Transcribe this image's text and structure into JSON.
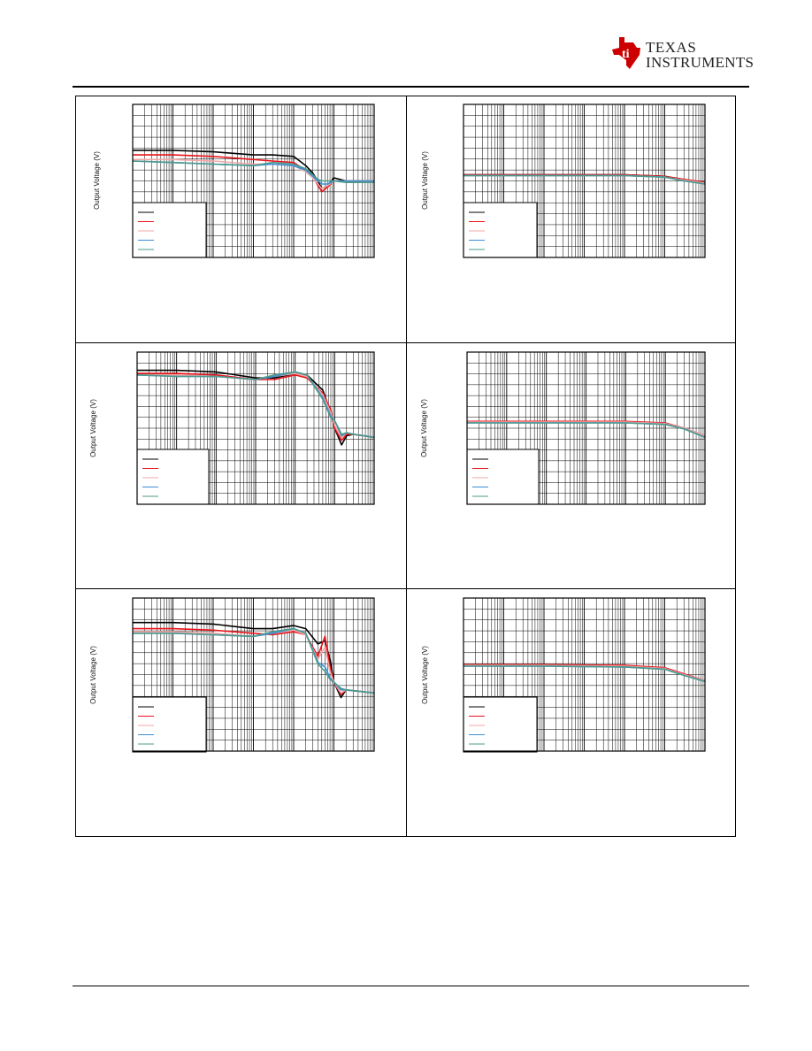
{
  "header": {
    "logo_line1": "TEXAS",
    "logo_line2": "INSTRUMENTS",
    "logo_colors": {
      "mark": "#cc0000",
      "text": "#222222"
    }
  },
  "series_colors": [
    "#000000",
    "#e8141b",
    "#f2a7a7",
    "#3d8fd6",
    "#4c9a8c"
  ],
  "chart_data": [
    {
      "type": "line",
      "ylabel": "Output Voltage (V)",
      "xscale": "log",
      "xlim": [
        10,
        10000000
      ],
      "ylim": [
        0,
        1
      ],
      "legend_placement": "bottom-left",
      "series": [
        {
          "x": [
            10,
            100,
            1000,
            10000,
            30000,
            100000,
            200000,
            300000,
            400000,
            500000,
            700000,
            1000000,
            2000000,
            10000000
          ],
          "y": [
            0.7,
            0.7,
            0.69,
            0.67,
            0.67,
            0.66,
            0.6,
            0.55,
            0.5,
            0.45,
            0.47,
            0.52,
            0.5,
            0.5
          ]
        },
        {
          "x": [
            10,
            100,
            1000,
            10000,
            30000,
            100000,
            200000,
            300000,
            400000,
            500000,
            700000,
            1000000,
            2000000,
            10000000
          ],
          "y": [
            0.67,
            0.67,
            0.66,
            0.64,
            0.63,
            0.62,
            0.57,
            0.53,
            0.47,
            0.43,
            0.46,
            0.5,
            0.5,
            0.5
          ]
        },
        {
          "x": [
            10,
            100,
            1000,
            10000,
            30000,
            100000,
            200000,
            300000,
            400000,
            500000,
            700000,
            1000000,
            2000000,
            10000000
          ],
          "y": [
            0.64,
            0.64,
            0.63,
            0.61,
            0.61,
            0.6,
            0.56,
            0.52,
            0.48,
            0.45,
            0.47,
            0.5,
            0.5,
            0.5
          ]
        },
        {
          "x": [
            10,
            100,
            1000,
            10000,
            30000,
            100000,
            200000,
            300000,
            400000,
            500000,
            700000,
            1000000,
            2000000,
            10000000
          ],
          "y": [
            0.63,
            0.62,
            0.61,
            0.6,
            0.61,
            0.6,
            0.57,
            0.53,
            0.5,
            0.48,
            0.48,
            0.5,
            0.5,
            0.5
          ]
        },
        {
          "x": [
            10,
            100,
            1000,
            10000,
            30000,
            100000,
            200000,
            300000,
            400000,
            500000,
            700000,
            1000000,
            2000000,
            10000000
          ],
          "y": [
            0.63,
            0.62,
            0.61,
            0.6,
            0.62,
            0.61,
            0.58,
            0.54,
            0.51,
            0.5,
            0.5,
            0.5,
            0.49,
            0.49
          ]
        }
      ]
    },
    {
      "type": "line",
      "ylabel": "Output Voltage (V)",
      "xscale": "log",
      "xlim": [
        10,
        10000000
      ],
      "ylim": [
        0,
        1
      ],
      "legend_placement": "bottom-left",
      "series": [
        {
          "x": [
            10,
            1000,
            100000,
            1000000,
            3000000,
            10000000
          ],
          "y": [
            0.54,
            0.54,
            0.54,
            0.53,
            0.51,
            0.49
          ]
        },
        {
          "x": [
            10,
            1000,
            100000,
            1000000,
            3000000,
            10000000
          ],
          "y": [
            0.54,
            0.54,
            0.54,
            0.53,
            0.51,
            0.49
          ]
        },
        {
          "x": [
            10,
            1000,
            100000,
            1000000,
            3000000,
            10000000
          ],
          "y": [
            0.535,
            0.535,
            0.535,
            0.525,
            0.505,
            0.485
          ]
        },
        {
          "x": [
            10,
            1000,
            100000,
            1000000,
            3000000,
            10000000
          ],
          "y": [
            0.535,
            0.535,
            0.535,
            0.525,
            0.5,
            0.48
          ]
        },
        {
          "x": [
            10,
            1000,
            100000,
            1000000,
            3000000,
            10000000
          ],
          "y": [
            0.535,
            0.535,
            0.535,
            0.525,
            0.5,
            0.48
          ]
        }
      ]
    },
    {
      "type": "line",
      "ylabel": "Output Voltage (V)",
      "xscale": "log",
      "xlim": [
        10,
        10000000
      ],
      "ylim": [
        0,
        1
      ],
      "legend_placement": "bottom-left",
      "series": [
        {
          "x": [
            10,
            100,
            1000,
            10000,
            30000,
            100000,
            200000,
            500000,
            800000,
            1000000,
            1500000,
            2000000,
            3000000,
            10000000
          ],
          "y": [
            0.88,
            0.88,
            0.87,
            0.83,
            0.83,
            0.86,
            0.85,
            0.75,
            0.6,
            0.5,
            0.39,
            0.45,
            0.46,
            0.44
          ]
        },
        {
          "x": [
            10,
            100,
            1000,
            10000,
            30000,
            100000,
            200000,
            500000,
            800000,
            1000000,
            1500000,
            2000000,
            3000000,
            10000000
          ],
          "y": [
            0.86,
            0.86,
            0.85,
            0.82,
            0.82,
            0.85,
            0.83,
            0.73,
            0.62,
            0.5,
            0.42,
            0.46,
            0.46,
            0.44
          ]
        },
        {
          "x": [
            10,
            100,
            1000,
            10000,
            30000,
            100000,
            200000,
            500000,
            800000,
            1000000,
            1500000,
            2000000,
            3000000,
            10000000
          ],
          "y": [
            0.85,
            0.85,
            0.84,
            0.82,
            0.84,
            0.86,
            0.84,
            0.72,
            0.6,
            0.52,
            0.44,
            0.47,
            0.46,
            0.44
          ]
        },
        {
          "x": [
            10,
            100,
            1000,
            10000,
            30000,
            100000,
            200000,
            500000,
            800000,
            1000000,
            1500000,
            2000000,
            3000000,
            10000000
          ],
          "y": [
            0.85,
            0.84,
            0.84,
            0.82,
            0.84,
            0.87,
            0.85,
            0.7,
            0.58,
            0.55,
            0.45,
            0.47,
            0.46,
            0.44
          ]
        },
        {
          "x": [
            10,
            100,
            1000,
            10000,
            30000,
            100000,
            200000,
            500000,
            800000,
            1000000,
            1500000,
            2000000,
            3000000,
            10000000
          ],
          "y": [
            0.85,
            0.84,
            0.84,
            0.82,
            0.85,
            0.87,
            0.85,
            0.69,
            0.57,
            0.55,
            0.46,
            0.47,
            0.46,
            0.44
          ]
        }
      ]
    },
    {
      "type": "line",
      "ylabel": "Output Voltage (V)",
      "xscale": "log",
      "xlim": [
        10,
        10000000
      ],
      "ylim": [
        0,
        1
      ],
      "legend_placement": "bottom-left",
      "series": [
        {
          "x": [
            10,
            1000,
            100000,
            1000000,
            3000000,
            10000000
          ],
          "y": [
            0.54,
            0.54,
            0.54,
            0.53,
            0.5,
            0.45
          ]
        },
        {
          "x": [
            10,
            1000,
            100000,
            1000000,
            3000000,
            10000000
          ],
          "y": [
            0.545,
            0.545,
            0.545,
            0.535,
            0.5,
            0.45
          ]
        },
        {
          "x": [
            10,
            1000,
            100000,
            1000000,
            3000000,
            10000000
          ],
          "y": [
            0.54,
            0.54,
            0.54,
            0.53,
            0.5,
            0.45
          ]
        },
        {
          "x": [
            10,
            1000,
            100000,
            1000000,
            3000000,
            10000000
          ],
          "y": [
            0.535,
            0.535,
            0.535,
            0.525,
            0.495,
            0.44
          ]
        },
        {
          "x": [
            10,
            1000,
            100000,
            1000000,
            3000000,
            10000000
          ],
          "y": [
            0.535,
            0.535,
            0.535,
            0.525,
            0.495,
            0.44
          ]
        }
      ]
    },
    {
      "type": "line",
      "ylabel": "Output Voltage (V)",
      "xscale": "log",
      "xlim": [
        10,
        10000000
      ],
      "ylim": [
        0,
        1
      ],
      "legend_placement": "bottom-left",
      "series": [
        {
          "x": [
            10,
            100,
            1000,
            10000,
            30000,
            100000,
            200000,
            400000,
            600000,
            800000,
            1000000,
            1500000,
            2000000,
            10000000
          ],
          "y": [
            0.84,
            0.84,
            0.83,
            0.8,
            0.8,
            0.82,
            0.8,
            0.7,
            0.72,
            0.6,
            0.45,
            0.35,
            0.4,
            0.38
          ]
        },
        {
          "x": [
            10,
            100,
            1000,
            10000,
            30000,
            100000,
            200000,
            400000,
            600000,
            800000,
            1000000,
            1500000,
            2000000,
            10000000
          ],
          "y": [
            0.8,
            0.8,
            0.79,
            0.77,
            0.76,
            0.78,
            0.76,
            0.62,
            0.75,
            0.55,
            0.45,
            0.37,
            0.4,
            0.38
          ]
        },
        {
          "x": [
            10,
            100,
            1000,
            10000,
            30000,
            100000,
            200000,
            400000,
            600000,
            800000,
            1000000,
            1500000,
            2000000,
            10000000
          ],
          "y": [
            0.78,
            0.78,
            0.77,
            0.75,
            0.77,
            0.79,
            0.76,
            0.6,
            0.68,
            0.52,
            0.45,
            0.38,
            0.4,
            0.38
          ]
        },
        {
          "x": [
            10,
            100,
            1000,
            10000,
            30000,
            100000,
            200000,
            400000,
            600000,
            800000,
            1000000,
            1500000,
            2000000,
            10000000
          ],
          "y": [
            0.77,
            0.77,
            0.76,
            0.75,
            0.77,
            0.8,
            0.77,
            0.58,
            0.55,
            0.48,
            0.45,
            0.4,
            0.4,
            0.38
          ]
        },
        {
          "x": [
            10,
            100,
            1000,
            10000,
            30000,
            100000,
            200000,
            400000,
            600000,
            800000,
            1000000,
            1500000,
            2000000,
            10000000
          ],
          "y": [
            0.77,
            0.77,
            0.76,
            0.75,
            0.78,
            0.8,
            0.77,
            0.57,
            0.52,
            0.47,
            0.45,
            0.41,
            0.4,
            0.38
          ]
        }
      ]
    },
    {
      "type": "line",
      "ylabel": "Output Voltage (V)",
      "xscale": "log",
      "xlim": [
        10,
        10000000
      ],
      "ylim": [
        0,
        1
      ],
      "legend_placement": "bottom-left",
      "series": [
        {
          "x": [
            10,
            1000,
            100000,
            1000000,
            3000000,
            10000000
          ],
          "y": [
            0.56,
            0.56,
            0.555,
            0.54,
            0.5,
            0.46
          ]
        },
        {
          "x": [
            10,
            1000,
            100000,
            1000000,
            3000000,
            10000000
          ],
          "y": [
            0.565,
            0.565,
            0.56,
            0.545,
            0.505,
            0.46
          ]
        },
        {
          "x": [
            10,
            1000,
            100000,
            1000000,
            3000000,
            10000000
          ],
          "y": [
            0.56,
            0.56,
            0.555,
            0.54,
            0.5,
            0.46
          ]
        },
        {
          "x": [
            10,
            1000,
            100000,
            1000000,
            3000000,
            10000000
          ],
          "y": [
            0.555,
            0.555,
            0.55,
            0.535,
            0.495,
            0.455
          ]
        },
        {
          "x": [
            10,
            1000,
            100000,
            1000000,
            3000000,
            10000000
          ],
          "y": [
            0.555,
            0.555,
            0.55,
            0.535,
            0.495,
            0.455
          ]
        }
      ]
    }
  ]
}
